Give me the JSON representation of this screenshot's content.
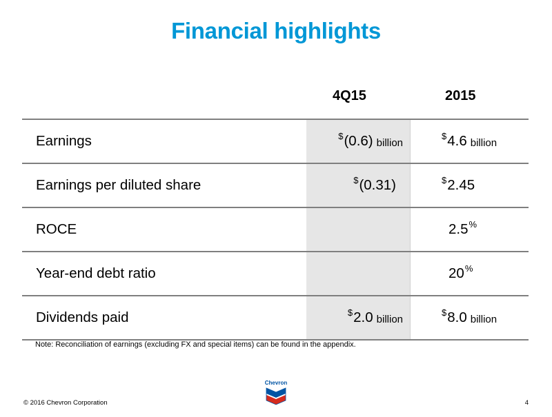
{
  "slide": {
    "title": "Financial highlights",
    "page_number": "4",
    "copyright": "© 2016 Chevron Corporation",
    "note": "Note: Reconciliation of earnings (excluding FX and special items) can be found in the appendix."
  },
  "columns": {
    "q": "4Q15",
    "y": "2015"
  },
  "rows": [
    {
      "label": "Earnings",
      "q": {
        "cur": "$",
        "num": "(0.6)",
        "unit": "billion"
      },
      "y": {
        "cur": "$",
        "num": "4.6",
        "unit": "billion"
      }
    },
    {
      "label": "Earnings per diluted share",
      "q": {
        "cur": "$",
        "num": "(0.31)"
      },
      "y": {
        "cur": "$",
        "num": "2.45"
      }
    },
    {
      "label": "ROCE",
      "y": {
        "num": "2.5",
        "pct": "%"
      }
    },
    {
      "label": "Year-end debt ratio",
      "y": {
        "num": "20",
        "pct": "%"
      }
    },
    {
      "label": "Dividends paid",
      "q": {
        "cur": "$",
        "num": "2.0",
        "unit": "billion"
      },
      "y": {
        "cur": "$",
        "num": "8.0",
        "unit": "billion"
      }
    }
  ],
  "logo": {
    "text": "Chevron",
    "colors": {
      "blue": "#0054A4",
      "red": "#D52B1E"
    }
  },
  "colors": {
    "title": "#0097D6",
    "shade": "#e6e6e6",
    "rule": "#7f7f7f"
  }
}
